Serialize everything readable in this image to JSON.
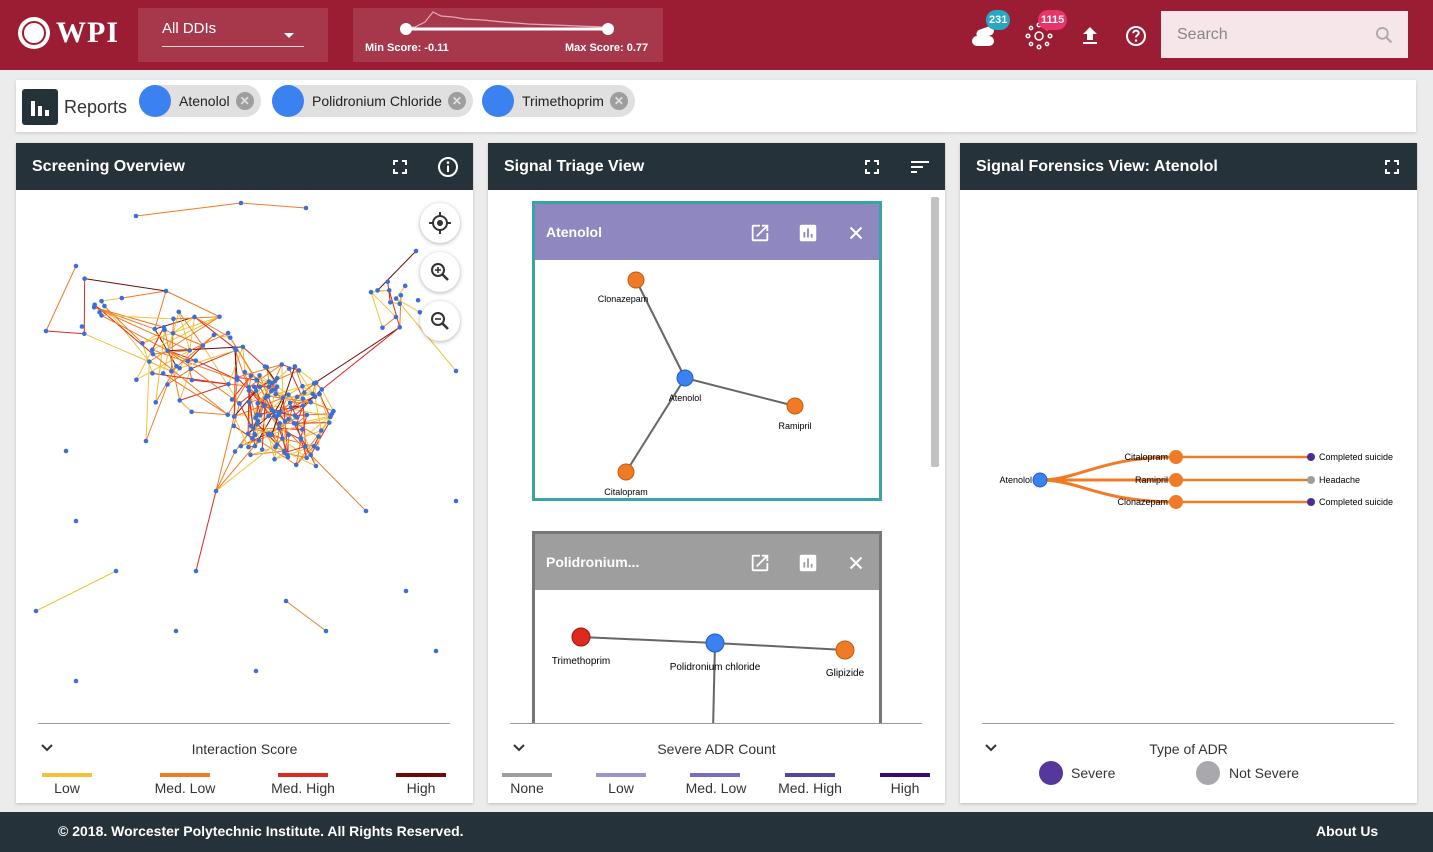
{
  "header": {
    "logo_text": "WPI",
    "ddi_select": {
      "value": "All DDIs"
    },
    "score": {
      "min_label": "Min Score: -0.11",
      "max_label": "Max Score: 0.77",
      "min_value": -0.11,
      "max_value": 0.77
    },
    "badges": {
      "drugs_count": "231",
      "interactions_count": "1115"
    },
    "search": {
      "placeholder": "Search"
    },
    "colors": {
      "header_bg": "#9b1d34",
      "badge_teal": "#26a7c4",
      "badge_pink": "#e8336b"
    }
  },
  "reports": {
    "label": "Reports",
    "chips": [
      {
        "label": "Atenolol"
      },
      {
        "label": "Polidronium Chloride"
      },
      {
        "label": "Trimethoprim"
      }
    ]
  },
  "panels": {
    "overview": {
      "title": "Screening Overview",
      "legend": {
        "title": "Interaction Score",
        "items": [
          {
            "label": "Low",
            "color": "#f2c23a"
          },
          {
            "label": "Med. Low",
            "color": "#f07b26"
          },
          {
            "label": "Med. High",
            "color": "#dc2a1e"
          },
          {
            "label": "High",
            "color": "#6e0a0a"
          }
        ]
      }
    },
    "triage": {
      "title": "Signal Triage View",
      "cards": [
        {
          "title": "Atenolol",
          "header_color": "#8e87c0",
          "nodes": {
            "center": "Atenolol",
            "top": "Clonazepam",
            "right": "Ramipril",
            "bottom": "Citalopram"
          }
        },
        {
          "title": "Polidronium...",
          "header_color": "#9e9e9e",
          "nodes": {
            "left": "Trimethoprim",
            "center": "Polidronium chloride",
            "right": "Glipizide"
          }
        }
      ],
      "legend": {
        "title": "Severe ADR Count",
        "items": [
          {
            "label": "None",
            "color": "#9e9e9e"
          },
          {
            "label": "Low",
            "color": "#9c94cc"
          },
          {
            "label": "Med. Low",
            "color": "#7a6cbe"
          },
          {
            "label": "Med. High",
            "color": "#56449c"
          },
          {
            "label": "High",
            "color": "#3a0c6e"
          }
        ]
      }
    },
    "forensics": {
      "title": "Signal Forensics View: Atenolol",
      "root": "Atenolol",
      "drugs": [
        "Citalopram",
        "Ramipril",
        "Clonazepam"
      ],
      "adrs": [
        {
          "label": "Completed suicide",
          "color": "#4b2d93"
        },
        {
          "label": "Headache",
          "color": "#9e9e9e"
        },
        {
          "label": "Completed suicide",
          "color": "#4b2d93"
        }
      ],
      "legend": {
        "title": "Type of ADR",
        "items": [
          {
            "label": "Severe",
            "color": "#56389a"
          },
          {
            "label": "Not Severe",
            "color": "#a9a9ad"
          }
        ]
      }
    }
  },
  "footer": {
    "copyright": "© 2018. Worcester Polytechnic Institute. All Rights Reserved.",
    "about": "About Us"
  }
}
